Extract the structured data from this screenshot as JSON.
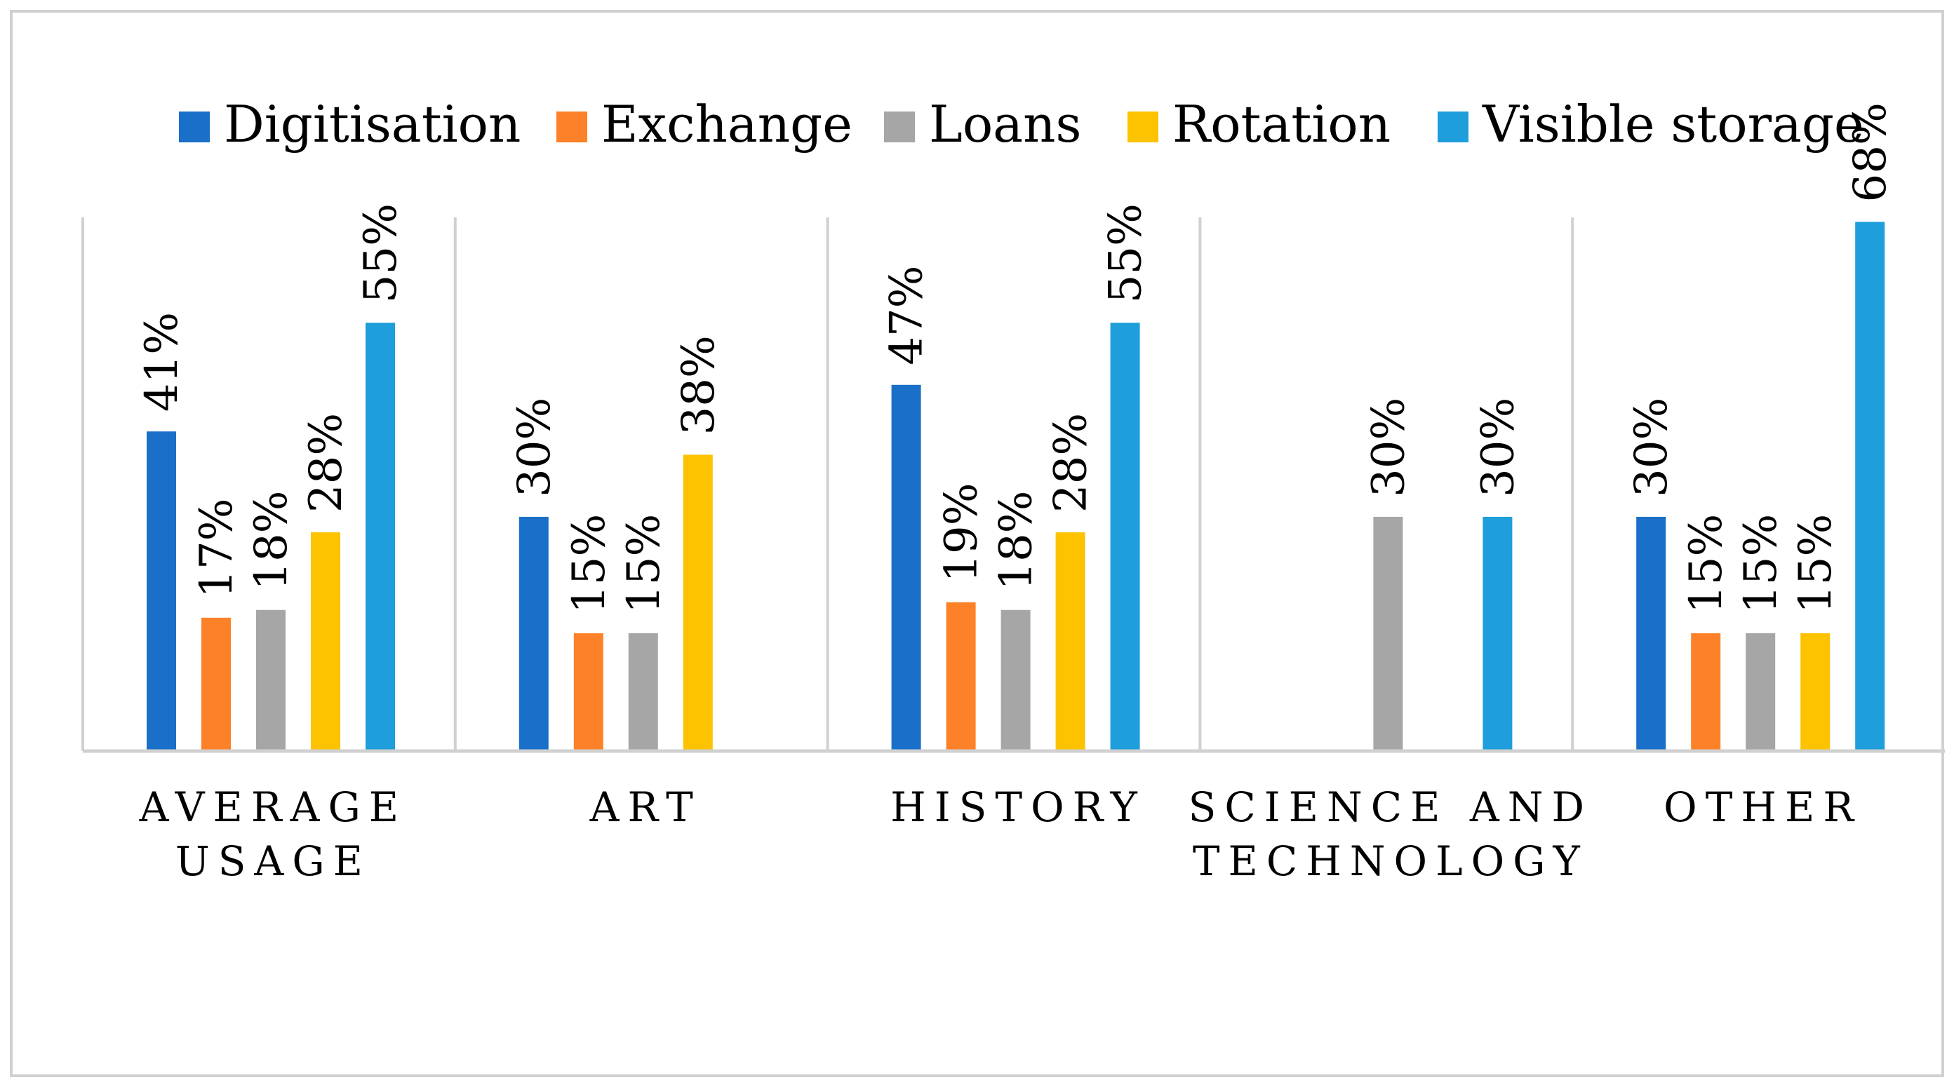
{
  "chart_data": {
    "type": "bar",
    "title": "",
    "xlabel": "",
    "ylabel": "",
    "ylim": [
      0,
      0.8
    ],
    "grid": false,
    "legend_position": "top",
    "categories": [
      [
        "AVERAGE",
        "USAGE"
      ],
      [
        "ART"
      ],
      [
        "HISTORY"
      ],
      [
        "SCIENCE AND",
        "TECHNOLOGY"
      ],
      [
        "OTHER"
      ]
    ],
    "series": [
      {
        "name": "Digitisation",
        "color": "#1a70c8",
        "values": [
          0.41,
          0.3,
          0.47,
          null,
          0.3
        ],
        "labels": [
          "41%",
          "30%",
          "47%",
          "",
          "30%"
        ]
      },
      {
        "name": "Exchange",
        "color": "#fd8128",
        "values": [
          0.17,
          0.15,
          0.19,
          null,
          0.15
        ],
        "labels": [
          "17%",
          "15%",
          "19%",
          "",
          "15%"
        ]
      },
      {
        "name": "Loans",
        "color": "#a6a6a6",
        "values": [
          0.18,
          0.15,
          0.18,
          0.3,
          0.15
        ],
        "labels": [
          "18%",
          "15%",
          "18%",
          "30%",
          "15%"
        ]
      },
      {
        "name": "Rotation",
        "color": "#fdc200",
        "values": [
          0.28,
          0.38,
          0.28,
          null,
          0.15
        ],
        "labels": [
          "28%",
          "38%",
          "28%",
          "",
          "15%"
        ]
      },
      {
        "name": "Visible storage",
        "color": "#1e9edb",
        "values": [
          0.55,
          null,
          0.55,
          0.3,
          0.68
        ],
        "labels": [
          "55%",
          "",
          "55%",
          "30%",
          "68%"
        ]
      }
    ]
  }
}
